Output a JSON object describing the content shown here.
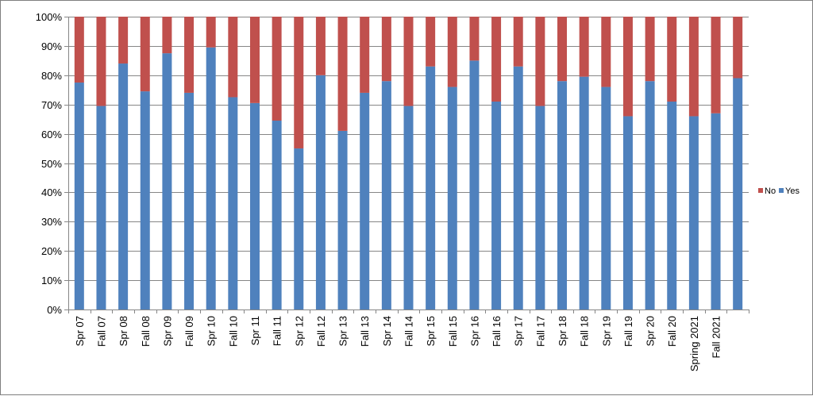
{
  "chart_data": {
    "type": "bar",
    "stacked": true,
    "percent": true,
    "categories": [
      "Spr 07",
      "Fall 07",
      "Spr 08",
      "Fall 08",
      "Spr 09",
      "Fall 09",
      "Spr 10",
      "Fall 10",
      "Spr 11",
      "Fall 11",
      "Spr 12",
      "Fall 12",
      "Spr 13",
      "Fall 13",
      "Spr 14",
      "Fall 14",
      "Spr 15",
      "Fall 15",
      "Spr 16",
      "Fall 16",
      "Spr 17",
      "Fall 17",
      "Spr 18",
      "Fall 18",
      "Spr 19",
      "Fall 19",
      "Spr 20",
      "Fall 20",
      "Spring 2021",
      "Fall 2021",
      ""
    ],
    "series": [
      {
        "name": "Yes",
        "color": "#4f81bd",
        "values": [
          77.5,
          69.5,
          84,
          74.5,
          87.5,
          74,
          89.5,
          72.5,
          70.5,
          64.5,
          55,
          80,
          61,
          74,
          78,
          69.5,
          83,
          76,
          85,
          71,
          83,
          69.5,
          78,
          79.5,
          76,
          66,
          78,
          71,
          66,
          67,
          79
        ]
      },
      {
        "name": "No",
        "color": "#c0504d",
        "values": [
          22.5,
          30.5,
          16,
          25.5,
          12.5,
          26,
          10.5,
          27.5,
          29.5,
          35.5,
          45,
          20,
          39,
          26,
          22,
          30.5,
          17,
          24,
          15,
          29,
          17,
          30.5,
          22,
          20.5,
          24,
          34,
          22,
          29,
          34,
          33,
          21
        ]
      }
    ],
    "yticks": [
      "0%",
      "10%",
      "20%",
      "30%",
      "40%",
      "50%",
      "60%",
      "70%",
      "80%",
      "90%",
      "100%"
    ],
    "ylim": [
      0,
      100
    ],
    "grid": true,
    "legend": {
      "placement": "right",
      "entries": [
        "No",
        "Yes"
      ]
    },
    "axis_color": "#868686",
    "grid_color": "#868686"
  }
}
